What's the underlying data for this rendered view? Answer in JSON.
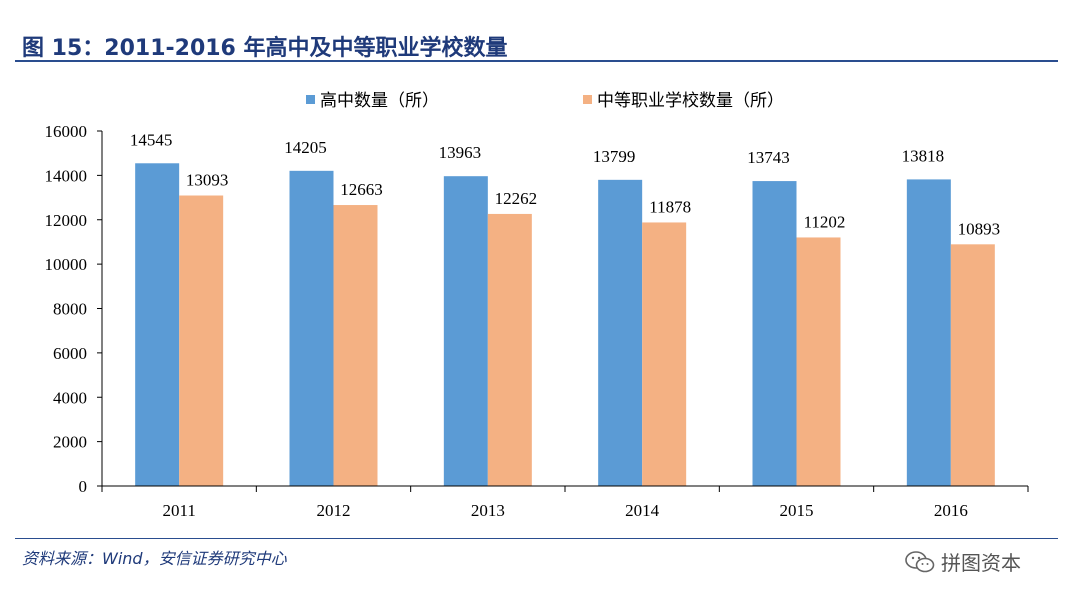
{
  "figure": {
    "title": "图 15：2011-2016 年高中及中等职业学校数量",
    "source": "资料来源：Wind，安信证券研究中心",
    "watermark": "拼图资本"
  },
  "colors": {
    "title": "#1f3a7a",
    "series1": "#5b9bd5",
    "series2": "#f4b183",
    "axis": "#000000"
  },
  "chart_data": {
    "type": "bar",
    "title": "",
    "xlabel": "",
    "ylabel": "",
    "categories": [
      "2011",
      "2012",
      "2013",
      "2014",
      "2015",
      "2016"
    ],
    "series": [
      {
        "name": "高中数量（所）",
        "values": [
          14545,
          14205,
          13963,
          13799,
          13743,
          13818
        ]
      },
      {
        "name": "中等职业学校数量（所）",
        "values": [
          13093,
          12663,
          12262,
          11878,
          11202,
          10893
        ]
      }
    ],
    "ylim": [
      0,
      16000
    ],
    "yticks": [
      0,
      2000,
      4000,
      6000,
      8000,
      10000,
      12000,
      14000,
      16000
    ],
    "legend_position": "top",
    "grid": false
  }
}
